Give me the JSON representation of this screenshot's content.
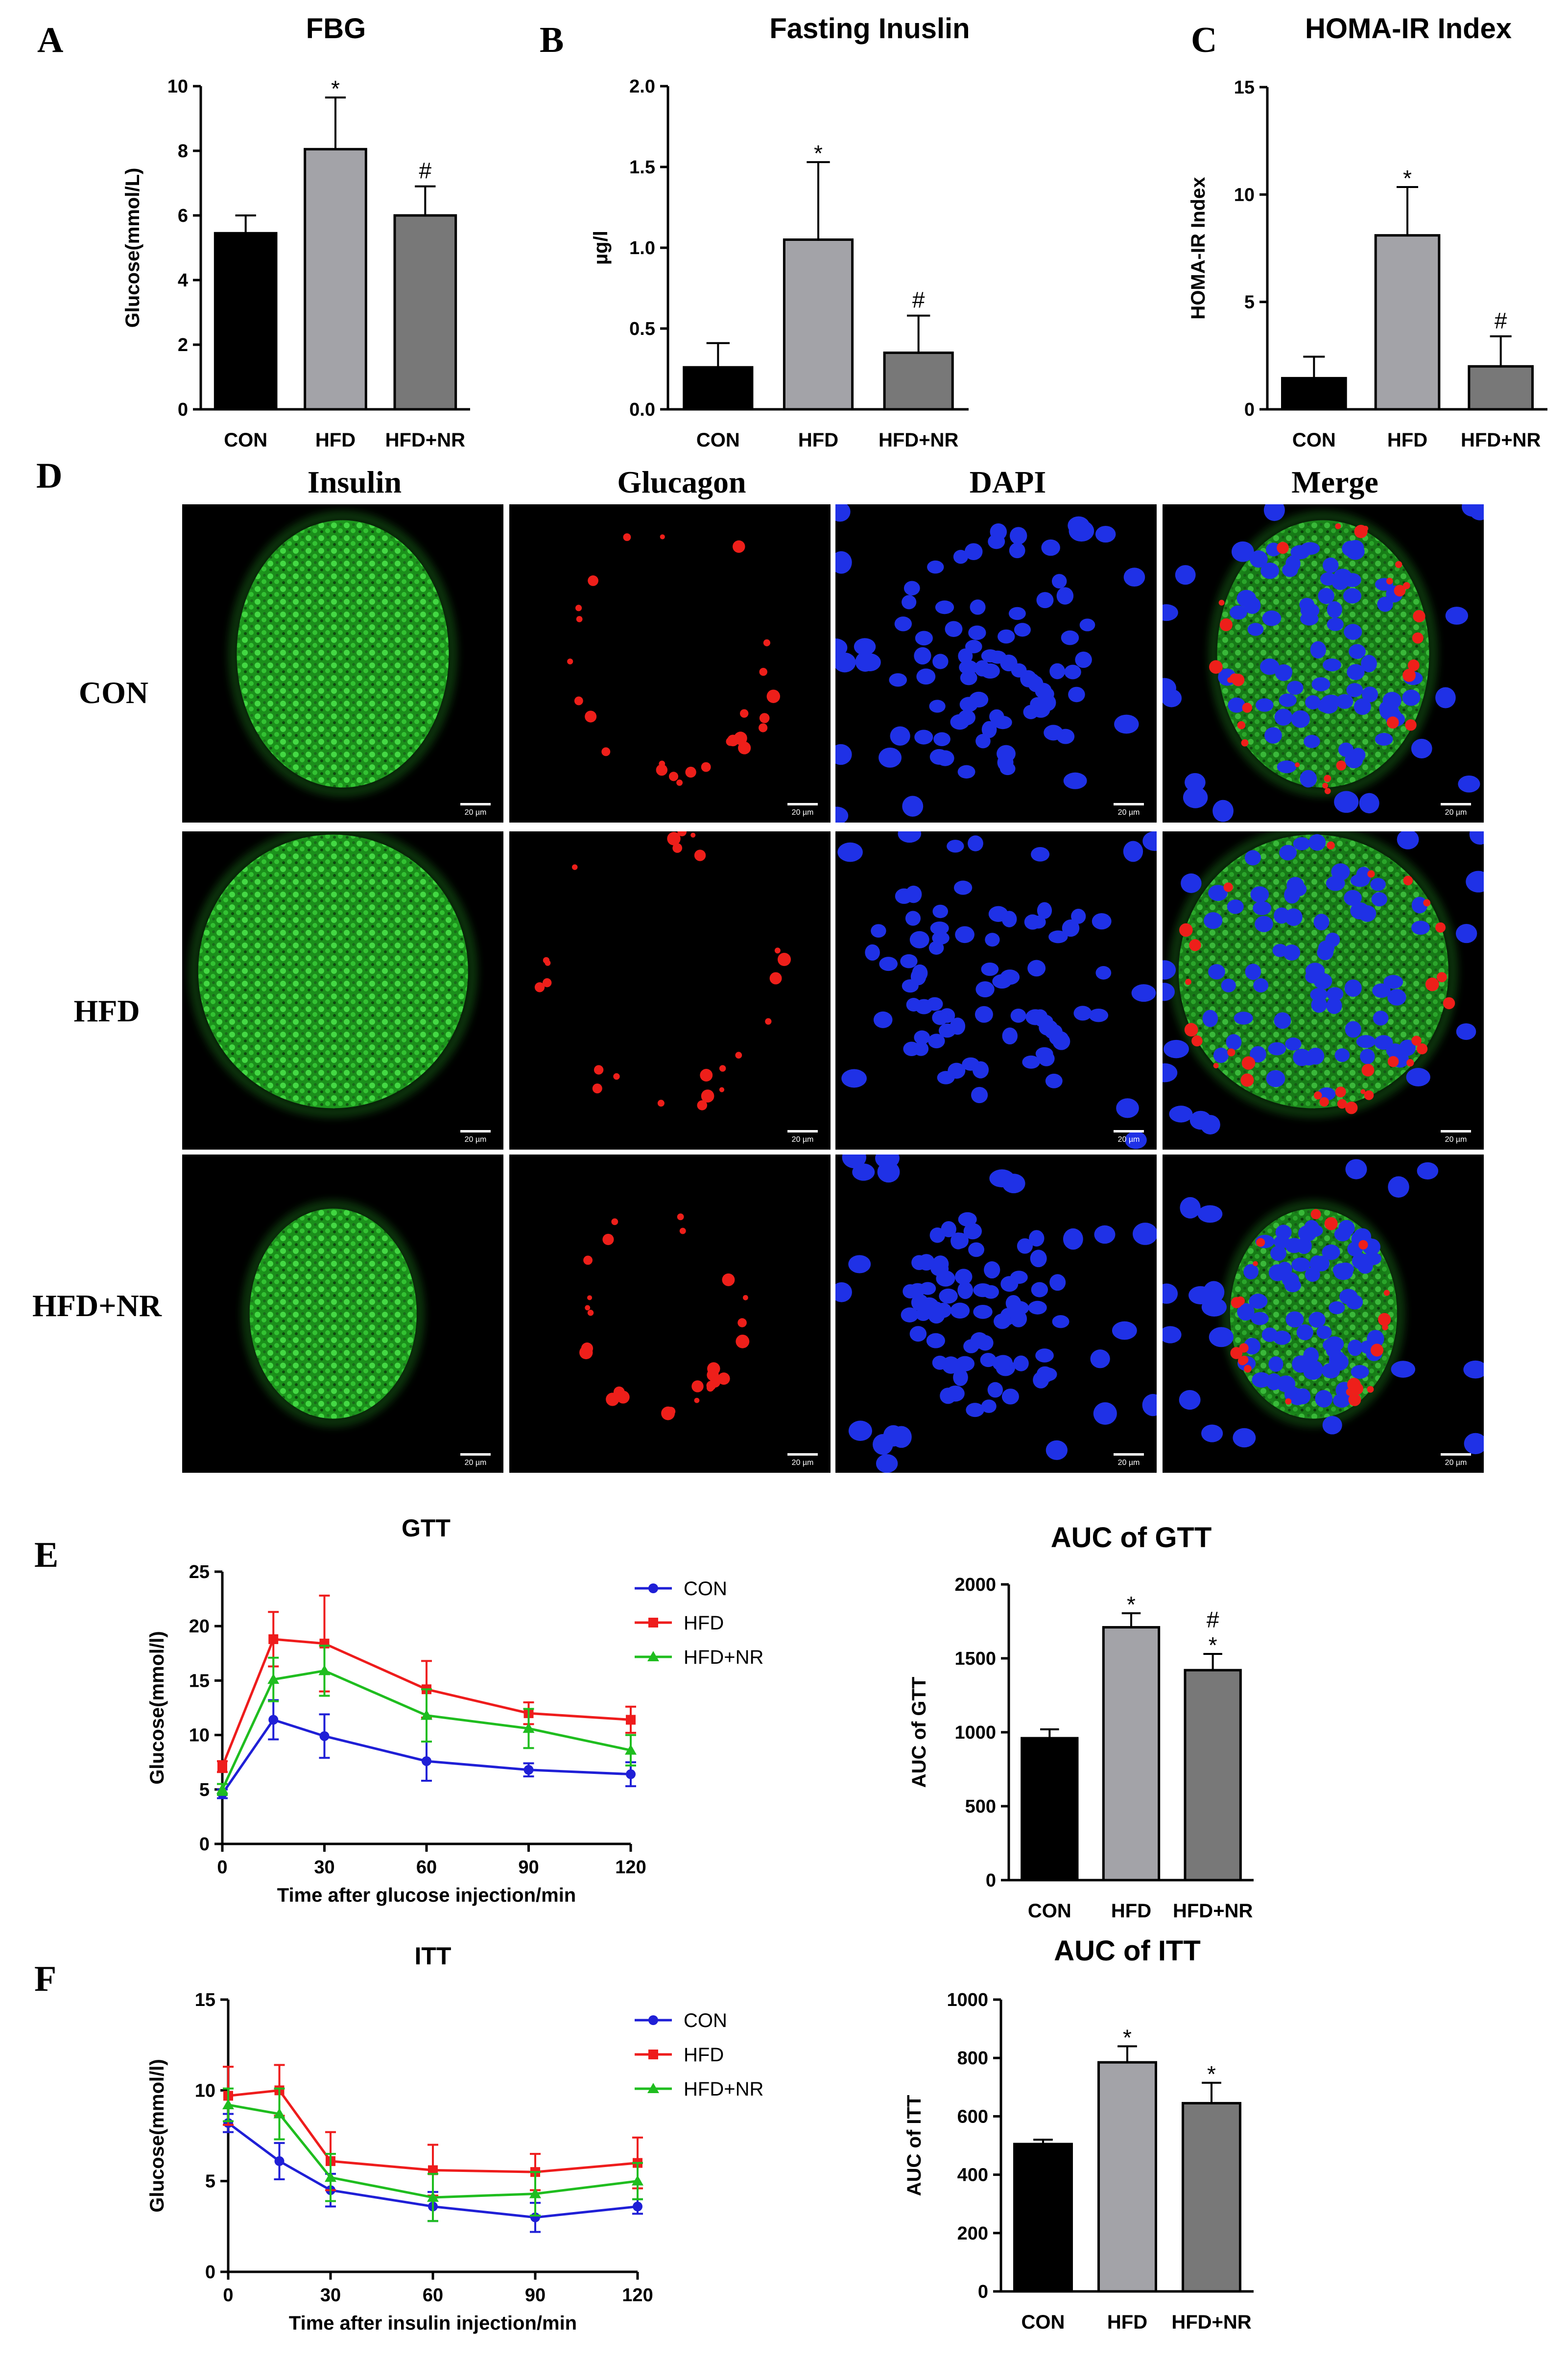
{
  "panel_letters": [
    "A",
    "B",
    "C",
    "D",
    "E",
    "F"
  ],
  "chart_data": [
    {
      "id": "A",
      "type": "bar",
      "title": "FBG",
      "ylabel": "Glucose(mmol/L)",
      "xlabel": "",
      "ylim": [
        0,
        10
      ],
      "yticks": [
        0,
        2,
        4,
        6,
        8,
        10
      ],
      "categories": [
        "CON",
        "HFD",
        "HFD+NR"
      ],
      "values": [
        5.45,
        8.05,
        6.0
      ],
      "errors": [
        0.55,
        1.6,
        0.9
      ],
      "sig": [
        "",
        "*",
        "#"
      ],
      "colors": [
        "#000000",
        "#a3a3a8",
        "#787878"
      ]
    },
    {
      "id": "B",
      "type": "bar",
      "title": "Fasting Inuslin",
      "ylabel": "µg/l",
      "xlabel": "",
      "ylim": [
        0,
        2.0
      ],
      "yticks": [
        "0.0",
        "0.5",
        "1.0",
        "1.5",
        "2.0"
      ],
      "categories": [
        "CON",
        "HFD",
        "HFD+NR"
      ],
      "values": [
        0.26,
        1.05,
        0.35
      ],
      "errors": [
        0.15,
        0.48,
        0.23
      ],
      "sig": [
        "",
        "*",
        "#"
      ],
      "colors": [
        "#000000",
        "#a3a3a8",
        "#787878"
      ]
    },
    {
      "id": "C",
      "type": "bar",
      "title": "HOMA-IR Index",
      "ylabel": "HOMA-IR Index",
      "xlabel": "",
      "ylim": [
        0,
        15
      ],
      "yticks": [
        0,
        5,
        10,
        15
      ],
      "categories": [
        "CON",
        "HFD",
        "HFD+NR"
      ],
      "values": [
        1.45,
        8.1,
        2.0
      ],
      "errors": [
        1.0,
        2.25,
        1.4
      ],
      "sig": [
        "",
        "*",
        "#"
      ],
      "colors": [
        "#000000",
        "#a3a3a8",
        "#787878"
      ]
    },
    {
      "id": "E_line",
      "type": "line",
      "title": "GTT",
      "xlabel": "Time after glucose injection/min",
      "ylabel": "Glucose(mmol/l)",
      "xlim": [
        0,
        120
      ],
      "ylim": [
        0,
        25
      ],
      "xticks": [
        0,
        30,
        60,
        90,
        120
      ],
      "yticks": [
        0,
        5,
        10,
        15,
        20,
        25
      ],
      "x": [
        0,
        15,
        30,
        60,
        90,
        120
      ],
      "series": [
        {
          "name": "CON",
          "color": "#1f1fd6",
          "marker": "circle",
          "values": [
            4.6,
            11.4,
            9.9,
            7.6,
            6.8,
            6.4
          ],
          "errors": [
            0.4,
            1.8,
            2.0,
            1.8,
            0.6,
            1.1
          ]
        },
        {
          "name": "HFD",
          "color": "#ee1c1c",
          "marker": "square",
          "values": [
            7.1,
            18.8,
            18.4,
            14.2,
            12.0,
            11.4
          ],
          "errors": [
            0.5,
            2.5,
            4.4,
            2.6,
            1.0,
            1.2
          ]
        },
        {
          "name": "HFD+NR",
          "color": "#1fbd1f",
          "marker": "triangle",
          "values": [
            5.0,
            15.1,
            15.9,
            11.8,
            10.6,
            8.6
          ],
          "errors": [
            0.5,
            2.0,
            2.3,
            2.4,
            1.8,
            1.4
          ]
        }
      ]
    },
    {
      "id": "E_bar",
      "type": "bar",
      "title": "AUC of GTT",
      "ylabel": "AUC of GTT",
      "xlabel": "",
      "ylim": [
        0,
        2000
      ],
      "yticks": [
        0,
        500,
        1000,
        1500,
        2000
      ],
      "categories": [
        "CON",
        "HFD",
        "HFD+NR"
      ],
      "values": [
        960,
        1710,
        1420
      ],
      "errors": [
        60,
        95,
        110
      ],
      "sig": [
        "",
        "*",
        "#\n*"
      ],
      "colors": [
        "#000000",
        "#a3a3a8",
        "#787878"
      ]
    },
    {
      "id": "F_line",
      "type": "line",
      "title": "ITT",
      "xlabel": "Time after insulin injection/min",
      "ylabel": "Glucose(mmol/l)",
      "xlim": [
        0,
        120
      ],
      "ylim": [
        0,
        15
      ],
      "xticks": [
        0,
        30,
        60,
        90,
        120
      ],
      "yticks": [
        0,
        5,
        10,
        15
      ],
      "x": [
        0,
        15,
        30,
        60,
        90,
        120
      ],
      "series": [
        {
          "name": "CON",
          "color": "#1f1fd6",
          "marker": "circle",
          "values": [
            8.2,
            6.1,
            4.5,
            3.6,
            3.0,
            3.6
          ],
          "errors": [
            0.5,
            1.0,
            0.9,
            0.8,
            0.8,
            0.4
          ]
        },
        {
          "name": "HFD",
          "color": "#ee1c1c",
          "marker": "square",
          "values": [
            9.7,
            10.0,
            6.1,
            5.6,
            5.5,
            6.0
          ],
          "errors": [
            1.6,
            1.4,
            1.6,
            1.4,
            1.0,
            1.4
          ]
        },
        {
          "name": "HFD+NR",
          "color": "#1fbd1f",
          "marker": "triangle",
          "values": [
            9.2,
            8.7,
            5.2,
            4.1,
            4.3,
            5.0
          ],
          "errors": [
            0.9,
            1.4,
            1.3,
            1.3,
            1.2,
            1.0
          ]
        }
      ]
    },
    {
      "id": "F_bar",
      "type": "bar",
      "title": "AUC of ITT",
      "ylabel": "AUC of ITT",
      "xlabel": "",
      "ylim": [
        0,
        1000
      ],
      "yticks": [
        0,
        200,
        400,
        600,
        800,
        1000
      ],
      "categories": [
        "CON",
        "HFD",
        "HFD+NR"
      ],
      "values": [
        505,
        785,
        645
      ],
      "errors": [
        15,
        55,
        70
      ],
      "sig": [
        "",
        "*",
        "*"
      ],
      "colors": [
        "#000000",
        "#a3a3a8",
        "#787878"
      ]
    }
  ],
  "immunofluorescence": {
    "columns": [
      "Insulin",
      "Glucagon",
      "DAPI",
      "Merge"
    ],
    "rows": [
      "CON",
      "HFD",
      "HFD+NR"
    ],
    "scale_bar": "20 µm",
    "channel_colors": {
      "Insulin": "#22c422",
      "Glucagon": "#e8201c",
      "DAPI": "#1c2ee8"
    }
  }
}
